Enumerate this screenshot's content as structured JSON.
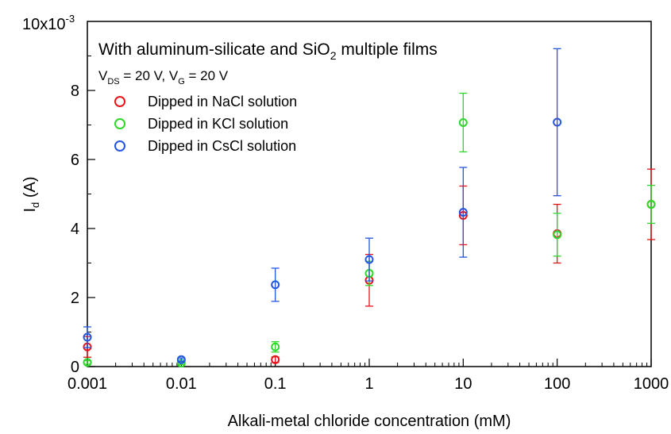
{
  "chart_data": {
    "type": "scatter",
    "title": "With aluminum-silicate and SiO2 multiple films",
    "title_parts": {
      "main": "With aluminum-silicate and SiO",
      "sub": "2",
      "tail": " multiple films"
    },
    "condition": "VDS = 20 V, VG = 20 V",
    "condition_parts": {
      "v1": "V",
      "s1": "DS",
      "t1": " = 20 V, ",
      "v2": "V",
      "s2": "G",
      "t2": " = 20 V"
    },
    "xlabel": "Alkali-metal chloride concentration (mM)",
    "ylabel": "Id (A)",
    "ylabel_parts": {
      "main": "I",
      "sub": "d",
      "tail": " (A)"
    },
    "y_multiplier": "10x10",
    "y_multiplier_exp": "-3",
    "x_scale": "log",
    "xlim": [
      0.001,
      1000
    ],
    "ylim": [
      0,
      10
    ],
    "x_ticks": [
      {
        "value": 0.001,
        "label": "0.001"
      },
      {
        "value": 0.01,
        "label": "0.01"
      },
      {
        "value": 0.1,
        "label": "0.1"
      },
      {
        "value": 1,
        "label": "1"
      },
      {
        "value": 10,
        "label": "10"
      },
      {
        "value": 100,
        "label": "100"
      },
      {
        "value": 1000,
        "label": "1000"
      }
    ],
    "y_ticks": [
      {
        "value": 0,
        "label": "0"
      },
      {
        "value": 2,
        "label": "2"
      },
      {
        "value": 4,
        "label": "4"
      },
      {
        "value": 6,
        "label": "6"
      },
      {
        "value": 8,
        "label": "8"
      }
    ],
    "legend_placement": "top-left",
    "grid": false,
    "series": [
      {
        "name": "Dipped in NaCl solution",
        "color": "#e8141c",
        "points": [
          {
            "x": 0.001,
            "y": 0.57,
            "err": 0.3
          },
          {
            "x": 0.1,
            "y": 0.2,
            "err": 0.08
          },
          {
            "x": 1,
            "y": 2.5,
            "err": 0.75
          },
          {
            "x": 10,
            "y": 4.38,
            "err": 0.85
          },
          {
            "x": 100,
            "y": 3.85,
            "err": 0.85
          },
          {
            "x": 1000,
            "y": 4.7,
            "err": 1.02
          }
        ]
      },
      {
        "name": "Dipped in KCl solution",
        "color": "#2ed82a",
        "points": [
          {
            "x": 0.001,
            "y": 0.12,
            "err": 0.05
          },
          {
            "x": 0.01,
            "y": 0.1,
            "err": 0.04
          },
          {
            "x": 0.1,
            "y": 0.57,
            "err": 0.15
          },
          {
            "x": 1,
            "y": 2.7,
            "err": 0.35
          },
          {
            "x": 10,
            "y": 7.07,
            "err": 0.85
          },
          {
            "x": 100,
            "y": 3.82,
            "err": 0.62
          },
          {
            "x": 1000,
            "y": 4.7,
            "err": 0.55
          }
        ]
      },
      {
        "name": "Dipped in CsCl solution",
        "color": "#2456e0",
        "points": [
          {
            "x": 0.001,
            "y": 0.85,
            "err": 0.3
          },
          {
            "x": 0.01,
            "y": 0.2,
            "err": 0.05
          },
          {
            "x": 0.1,
            "y": 2.37,
            "err": 0.48
          },
          {
            "x": 1,
            "y": 3.1,
            "err": 0.62
          },
          {
            "x": 10,
            "y": 4.47,
            "err": 1.3
          },
          {
            "x": 100,
            "y": 7.08,
            "err": 2.13
          }
        ]
      }
    ]
  }
}
